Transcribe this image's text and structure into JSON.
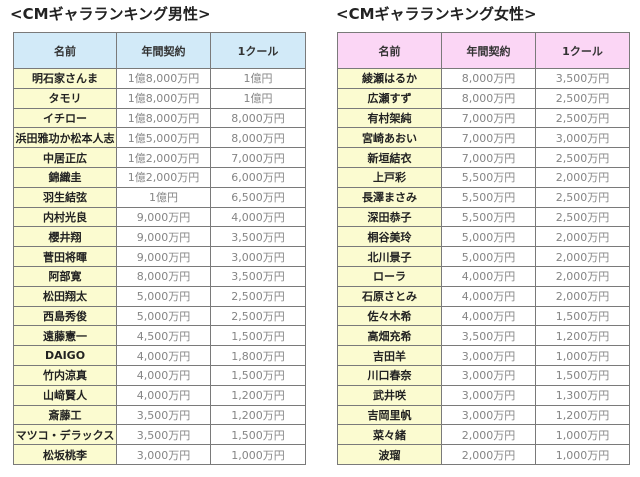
{
  "colors": {
    "men_header": "#d2eaf8",
    "women_header": "#fbd6f5",
    "name_cell": "#fbfbd0"
  },
  "men": {
    "title": "<CMギャラランキング男性>",
    "headers": [
      "名前",
      "年間契約",
      "1クール"
    ],
    "rows": [
      [
        "明石家さんま",
        "1億8,000万円",
        "1億円"
      ],
      [
        "タモリ",
        "1億8,000万円",
        "1億円"
      ],
      [
        "イチロー",
        "1億8,000万円",
        "8,000万円"
      ],
      [
        "浜田雅功か松本人志",
        "1億5,000万円",
        "8,000万円"
      ],
      [
        "中居正広",
        "1億2,000万円",
        "7,000万円"
      ],
      [
        "錦織圭",
        "1億2,000万円",
        "6,000万円"
      ],
      [
        "羽生結弦",
        "1億円",
        "6,500万円"
      ],
      [
        "内村光良",
        "9,000万円",
        "4,000万円"
      ],
      [
        "櫻井翔",
        "9,000万円",
        "3,500万円"
      ],
      [
        "菅田将暉",
        "9,000万円",
        "3,000万円"
      ],
      [
        "阿部寛",
        "8,000万円",
        "3,500万円"
      ],
      [
        "松田翔太",
        "5,000万円",
        "2,500万円"
      ],
      [
        "西島秀俊",
        "5,000万円",
        "2,500万円"
      ],
      [
        "遠藤憲一",
        "4,500万円",
        "1,500万円"
      ],
      [
        "DAIGO",
        "4,000万円",
        "1,800万円"
      ],
      [
        "竹内涼真",
        "4,000万円",
        "1,500万円"
      ],
      [
        "山﨑賢人",
        "4,000万円",
        "1,200万円"
      ],
      [
        "斎藤工",
        "3,500万円",
        "1,200万円"
      ],
      [
        "マツコ・デラックス",
        "3,500万円",
        "1,500万円"
      ],
      [
        "松坂桃李",
        "3,000万円",
        "1,000万円"
      ]
    ]
  },
  "women": {
    "title": "<CMギャラランキング女性>",
    "headers": [
      "名前",
      "年間契約",
      "1クール"
    ],
    "rows": [
      [
        "綾瀬はるか",
        "8,000万円",
        "3,500万円"
      ],
      [
        "広瀬すず",
        "8,000万円",
        "2,500万円"
      ],
      [
        "有村架純",
        "7,000万円",
        "2,500万円"
      ],
      [
        "宮崎あおい",
        "7,000万円",
        "3,000万円"
      ],
      [
        "新垣結衣",
        "7,000万円",
        "2,500万円"
      ],
      [
        "上戸彩",
        "5,500万円",
        "2,000万円"
      ],
      [
        "長澤まさみ",
        "5,500万円",
        "2,500万円"
      ],
      [
        "深田恭子",
        "5,500万円",
        "2,500万円"
      ],
      [
        "桐谷美玲",
        "5,000万円",
        "2,000万円"
      ],
      [
        "北川景子",
        "5,000万円",
        "2,000万円"
      ],
      [
        "ローラ",
        "4,000万円",
        "2,000万円"
      ],
      [
        "石原さとみ",
        "4,000万円",
        "2,000万円"
      ],
      [
        "佐々木希",
        "4,000万円",
        "1,500万円"
      ],
      [
        "高畑充希",
        "3,500万円",
        "1,200万円"
      ],
      [
        "吉田羊",
        "3,000万円",
        "1,000万円"
      ],
      [
        "川口春奈",
        "3,000万円",
        "1,500万円"
      ],
      [
        "武井咲",
        "3,000万円",
        "1,300万円"
      ],
      [
        "吉岡里帆",
        "3,000万円",
        "1,200万円"
      ],
      [
        "菜々緒",
        "2,000万円",
        "1,000万円"
      ],
      [
        "波瑠",
        "2,000万円",
        "1,000万円"
      ]
    ]
  }
}
